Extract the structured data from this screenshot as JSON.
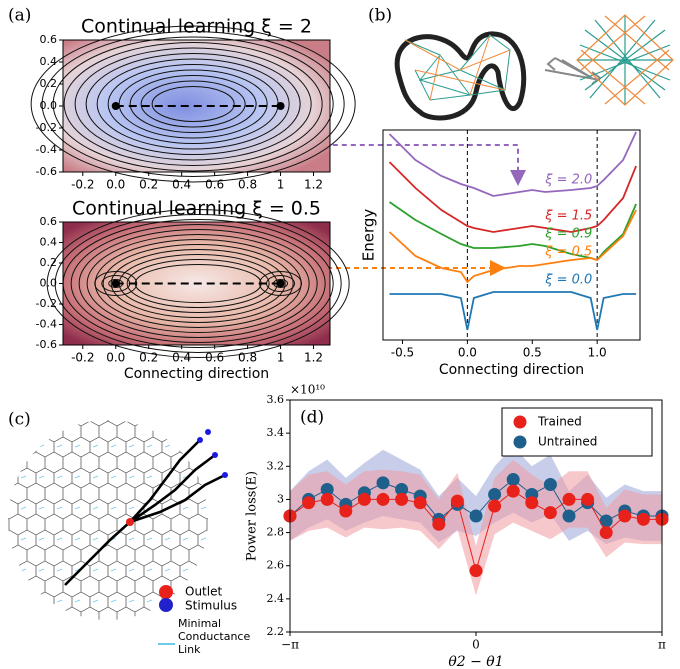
{
  "panel_labels": [
    "(a)",
    "(b)",
    "(c)",
    "(d)"
  ],
  "chart_data": [
    {
      "type": "contour",
      "title": "Continual learning  ξ = 2",
      "palette": "blue",
      "xlim": [
        -0.32,
        1.3
      ],
      "ylim": [
        -0.6,
        0.6
      ],
      "xticks": [
        -0.2,
        {
          "value": 0,
          "label": "0.0"
        },
        0.2,
        0.4,
        0.6,
        0.8,
        1.0,
        1.2
      ],
      "yticks": [
        -0.6,
        -0.4,
        -0.2,
        {
          "value": 0,
          "label": "0.0"
        },
        0.2,
        0.4,
        0.6
      ],
      "points": {
        "x": [
          0,
          1
        ],
        "y": [
          0,
          0
        ]
      }
    },
    {
      "type": "contour",
      "title": "Continual learning  ξ = 0.5",
      "palette": "red",
      "xlabel": "Connecting direction",
      "xlim": [
        -0.32,
        1.3
      ],
      "ylim": [
        -0.6,
        0.6
      ],
      "xticks": [
        -0.2,
        {
          "value": 0,
          "label": "0.0"
        },
        0.2,
        0.4,
        0.6,
        0.8,
        1.0,
        1.2
      ],
      "yticks": [
        -0.6,
        -0.4,
        -0.2,
        {
          "value": 0,
          "label": "0.0"
        },
        0.2,
        0.4,
        0.6
      ],
      "points": {
        "x": [
          0,
          1
        ],
        "y": [
          0,
          0
        ]
      }
    },
    {
      "type": "line",
      "xlabel": "Connecting direction",
      "ylabel": "Energy",
      "xlim": [
        -0.65,
        1.33
      ],
      "ylim": [
        0,
        10.5
      ],
      "xticks": [
        -0.5,
        {
          "value": 0,
          "label": "0.0"
        },
        0.5,
        {
          "value": 1,
          "label": "1.0"
        }
      ],
      "x": [
        -0.6,
        -0.4,
        -0.2,
        -0.05,
        0,
        0.05,
        0.2,
        0.4,
        0.5,
        0.6,
        0.8,
        0.95,
        1.0,
        1.05,
        1.2,
        1.3
      ],
      "series": [
        {
          "name": "ξ = 2.0",
          "color": "#9467bd",
          "values": [
            10.3,
            9.0,
            8.2,
            7.8,
            7.7,
            7.6,
            7.2,
            7.4,
            7.5,
            7.4,
            7.5,
            7.6,
            7.7,
            8.0,
            9.0,
            10.4
          ]
        },
        {
          "name": "ξ = 1.5",
          "color": "#d62728",
          "values": [
            8.9,
            7.6,
            6.5,
            5.9,
            5.7,
            5.6,
            5.4,
            5.6,
            5.7,
            5.6,
            5.4,
            5.6,
            5.7,
            6.0,
            7.1,
            8.7
          ]
        },
        {
          "name": "ξ = 0.9",
          "color": "#2ca02c",
          "values": [
            6.9,
            6.0,
            5.3,
            4.8,
            4.7,
            4.6,
            4.6,
            4.7,
            4.8,
            4.7,
            4.3,
            4.1,
            4.0,
            4.4,
            5.3,
            6.8
          ]
        },
        {
          "name": "ξ = 0.5",
          "color": "#ff7f0e",
          "values": [
            5.4,
            4.2,
            3.6,
            3.4,
            2.9,
            3.2,
            3.5,
            3.7,
            3.7,
            3.8,
            4.0,
            4.1,
            4.0,
            4.3,
            5.2,
            6.5
          ]
        },
        {
          "name": "ξ = 0.0",
          "color": "#1f77b4",
          "values": [
            2.3,
            2.3,
            2.3,
            2.1,
            0.5,
            2.1,
            2.4,
            2.4,
            2.4,
            2.4,
            2.4,
            2.1,
            0.5,
            2.1,
            2.3,
            2.3
          ]
        }
      ]
    },
    {
      "type": "band-scatter",
      "xlabel": "θ2 − θ1",
      "ylabel": "Power loss(E)",
      "multiplier": "×10¹⁰",
      "legend": "upper right",
      "xlim": [
        -3.1416,
        3.1416
      ],
      "ylim": [
        2.2,
        3.6
      ],
      "xticks": [
        {
          "value": -3.1416,
          "label": "−π"
        },
        0,
        {
          "value": 3.1416,
          "label": "π"
        }
      ],
      "yticks": [
        2.2,
        2.4,
        2.6,
        2.8,
        3,
        3.2,
        3.4,
        3.6
      ],
      "x": [
        -3.1416,
        -2.8274,
        -2.5133,
        -2.1991,
        -1.885,
        -1.5708,
        -1.2566,
        -0.9425,
        -0.6283,
        -0.3142,
        0,
        0.3142,
        0.6283,
        0.9425,
        1.2566,
        1.5708,
        1.885,
        2.1991,
        2.5133,
        2.8274,
        3.1416
      ],
      "series": [
        {
          "name": "Untrained",
          "color": "#1f5f8b",
          "band_color": "#9aa6d8",
          "values": [
            2.9,
            3.0,
            3.06,
            2.97,
            3.04,
            3.1,
            3.06,
            3.02,
            2.88,
            2.97,
            2.9,
            3.03,
            3.12,
            3.03,
            3.09,
            2.9,
            2.98,
            2.87,
            2.93,
            2.9,
            2.9
          ],
          "errors": [
            0.15,
            0.17,
            0.18,
            0.16,
            0.18,
            0.2,
            0.18,
            0.16,
            0.14,
            0.16,
            0.12,
            0.17,
            0.2,
            0.17,
            0.18,
            0.15,
            0.17,
            0.14,
            0.16,
            0.15,
            0.15
          ]
        },
        {
          "name": "Trained",
          "color": "#e8211b",
          "band_color": "#f19aa0",
          "values": [
            2.9,
            2.98,
            3.0,
            2.93,
            3.0,
            3.0,
            3.0,
            2.98,
            2.85,
            2.99,
            2.57,
            2.96,
            3.05,
            2.98,
            2.92,
            3.0,
            3.0,
            2.8,
            2.9,
            2.88,
            2.88
          ],
          "errors": [
            0.15,
            0.17,
            0.17,
            0.16,
            0.17,
            0.18,
            0.17,
            0.17,
            0.15,
            0.17,
            0.15,
            0.17,
            0.19,
            0.17,
            0.16,
            0.17,
            0.17,
            0.15,
            0.16,
            0.15,
            0.15
          ]
        }
      ]
    }
  ],
  "diagram": {
    "legend": [
      "Outlet",
      "Stimulus",
      "Minimal Conductance Link"
    ]
  }
}
